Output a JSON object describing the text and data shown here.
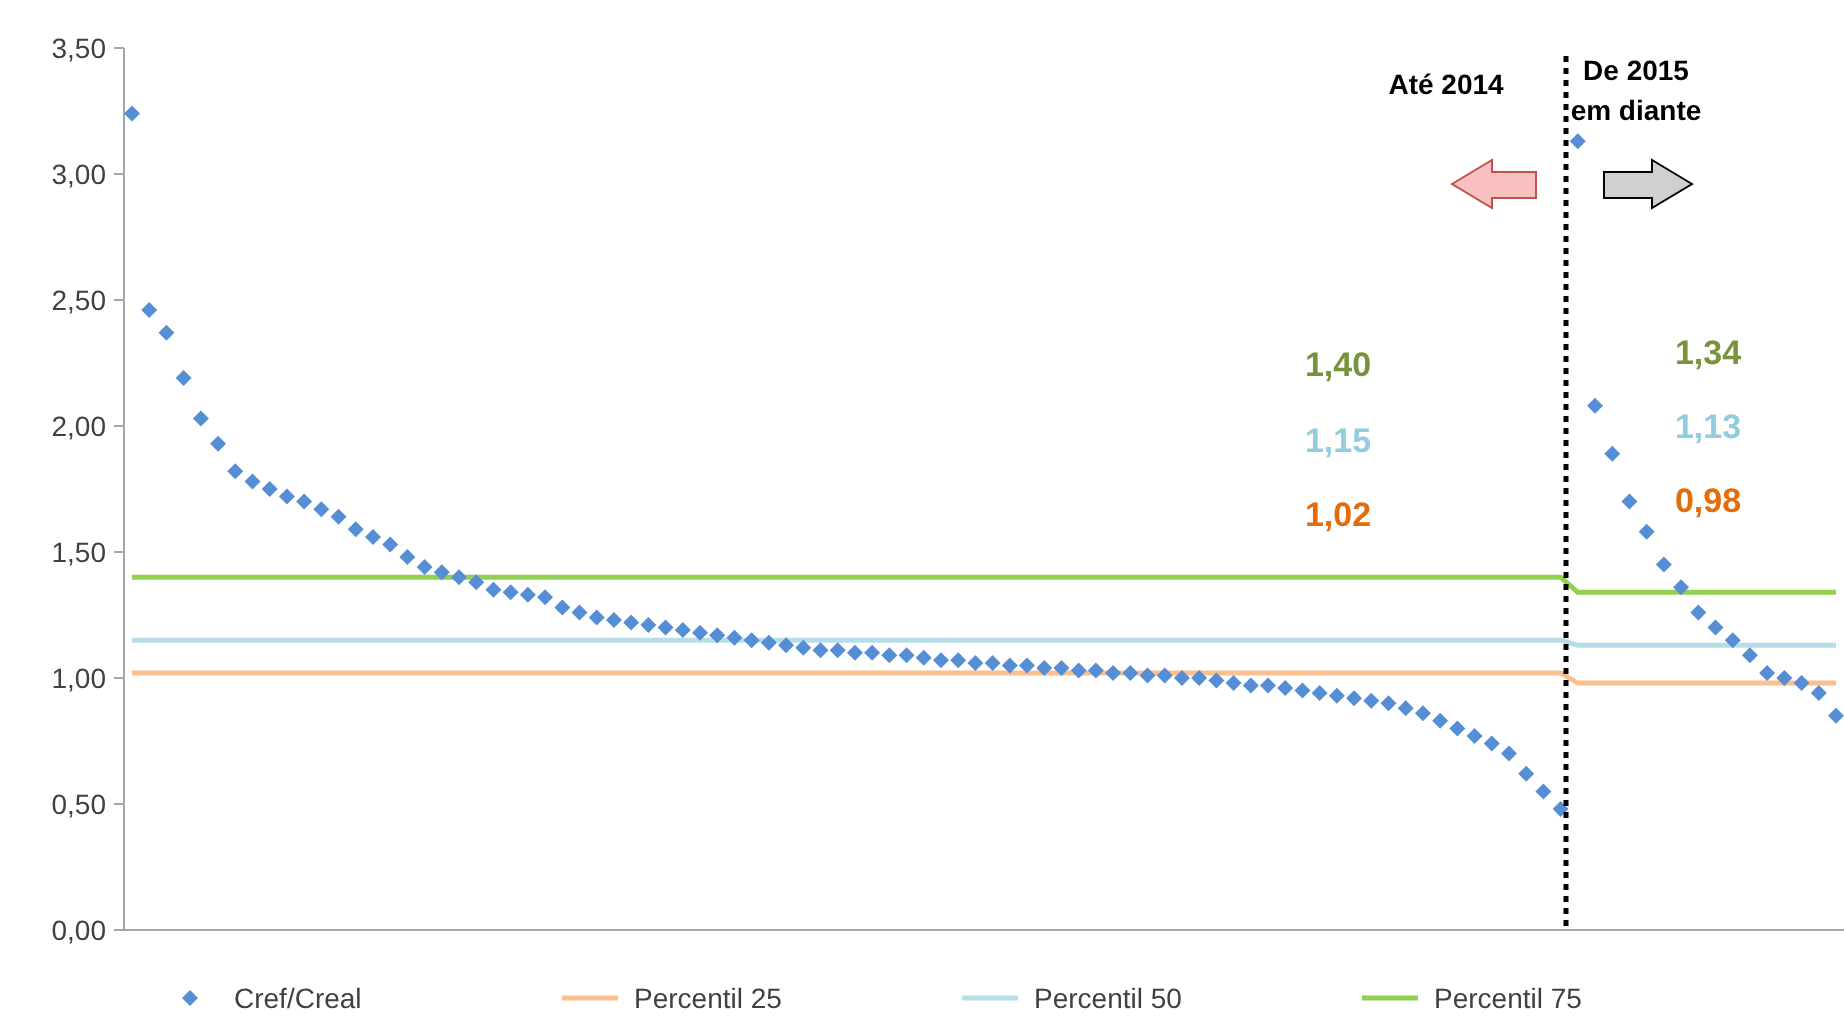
{
  "chart_data": {
    "type": "scatter",
    "categories": [
      null,
      null,
      null,
      null,
      null,
      null,
      null,
      null,
      null,
      null,
      null,
      null,
      null,
      null,
      null,
      null,
      null,
      null,
      null,
      null,
      null,
      null,
      null,
      null,
      null,
      null,
      null,
      null,
      null,
      null,
      null,
      null,
      null,
      null,
      null,
      null,
      null,
      null,
      null,
      null,
      null,
      null,
      null,
      null,
      null,
      null,
      null,
      null,
      null,
      null,
      null,
      null,
      null,
      null,
      null,
      null,
      null,
      null,
      null,
      null,
      null,
      null,
      null,
      null,
      null,
      null,
      null,
      null,
      null,
      null,
      null,
      null,
      null,
      null,
      null,
      null,
      null,
      null,
      null,
      null,
      null,
      null,
      null,
      null,
      null,
      null,
      null,
      null,
      null,
      null,
      null,
      null,
      null,
      null,
      null,
      null,
      null,
      null,
      null,
      null
    ],
    "ylim": [
      0,
      3.5
    ],
    "yticks": [
      {
        "value": 0,
        "label": "0,00"
      },
      {
        "value": 0.5,
        "label": "0,50"
      },
      {
        "value": 1,
        "label": "1,00"
      },
      {
        "value": 1.5,
        "label": "1,50"
      },
      {
        "value": 2,
        "label": "2,00"
      },
      {
        "value": 2.5,
        "label": "2,50"
      },
      {
        "value": 3,
        "label": "3,00"
      },
      {
        "value": 3.5,
        "label": "3,50"
      }
    ],
    "grid": false,
    "legend": "bottom",
    "series": [
      {
        "name": "Cref/Creal",
        "marker": "diamond",
        "color": "#558ed5",
        "values": [
          3.24,
          2.46,
          2.37,
          2.19,
          2.03,
          1.93,
          1.82,
          1.78,
          1.75,
          1.72,
          1.7,
          1.67,
          1.64,
          1.59,
          1.56,
          1.53,
          1.48,
          1.44,
          1.42,
          1.4,
          1.38,
          1.35,
          1.34,
          1.33,
          1.32,
          1.28,
          1.26,
          1.24,
          1.23,
          1.22,
          1.21,
          1.2,
          1.19,
          1.18,
          1.17,
          1.16,
          1.15,
          1.14,
          1.13,
          1.12,
          1.11,
          1.11,
          1.1,
          1.1,
          1.09,
          1.09,
          1.08,
          1.07,
          1.07,
          1.06,
          1.06,
          1.05,
          1.05,
          1.04,
          1.04,
          1.03,
          1.03,
          1.02,
          1.02,
          1.01,
          1.01,
          1.0,
          1.0,
          0.99,
          0.98,
          0.97,
          0.97,
          0.96,
          0.95,
          0.94,
          0.93,
          0.92,
          0.91,
          0.9,
          0.88,
          0.86,
          0.83,
          0.8,
          0.77,
          0.74,
          0.7,
          0.62,
          0.55,
          0.48,
          3.13,
          2.08,
          1.89,
          1.7,
          1.58,
          1.45,
          1.36,
          1.26,
          1.2,
          1.15,
          1.09,
          1.02,
          1.0,
          0.98,
          0.94,
          0.85
        ]
      },
      {
        "name": "Percentil 25",
        "type": "line",
        "color": "#fac090",
        "values": [
          1.02,
          1.02,
          1.02,
          1.02,
          1.02,
          1.02,
          1.02,
          1.02,
          1.02,
          1.02,
          1.02,
          1.02,
          1.02,
          1.02,
          1.02,
          1.02,
          1.02,
          1.02,
          1.02,
          1.02,
          1.02,
          1.02,
          1.02,
          1.02,
          1.02,
          1.02,
          1.02,
          1.02,
          1.02,
          1.02,
          1.02,
          1.02,
          1.02,
          1.02,
          1.02,
          1.02,
          1.02,
          1.02,
          1.02,
          1.02,
          1.02,
          1.02,
          1.02,
          1.02,
          1.02,
          1.02,
          1.02,
          1.02,
          1.02,
          1.02,
          1.02,
          1.02,
          1.02,
          1.02,
          1.02,
          1.02,
          1.02,
          1.02,
          1.02,
          1.02,
          1.02,
          1.02,
          1.02,
          1.02,
          1.02,
          1.02,
          1.02,
          1.02,
          1.02,
          1.02,
          1.02,
          1.02,
          1.02,
          1.02,
          1.02,
          1.02,
          1.02,
          1.02,
          1.02,
          1.02,
          1.02,
          1.02,
          1.02,
          1.02,
          0.98,
          0.98,
          0.98,
          0.98,
          0.98,
          0.98,
          0.98,
          0.98,
          0.98,
          0.98,
          0.98,
          0.98,
          0.98,
          0.98,
          0.98,
          0.98
        ]
      },
      {
        "name": "Percentil 50",
        "type": "line",
        "color": "#b7dee8",
        "values": [
          1.15,
          1.15,
          1.15,
          1.15,
          1.15,
          1.15,
          1.15,
          1.15,
          1.15,
          1.15,
          1.15,
          1.15,
          1.15,
          1.15,
          1.15,
          1.15,
          1.15,
          1.15,
          1.15,
          1.15,
          1.15,
          1.15,
          1.15,
          1.15,
          1.15,
          1.15,
          1.15,
          1.15,
          1.15,
          1.15,
          1.15,
          1.15,
          1.15,
          1.15,
          1.15,
          1.15,
          1.15,
          1.15,
          1.15,
          1.15,
          1.15,
          1.15,
          1.15,
          1.15,
          1.15,
          1.15,
          1.15,
          1.15,
          1.15,
          1.15,
          1.15,
          1.15,
          1.15,
          1.15,
          1.15,
          1.15,
          1.15,
          1.15,
          1.15,
          1.15,
          1.15,
          1.15,
          1.15,
          1.15,
          1.15,
          1.15,
          1.15,
          1.15,
          1.15,
          1.15,
          1.15,
          1.15,
          1.15,
          1.15,
          1.15,
          1.15,
          1.15,
          1.15,
          1.15,
          1.15,
          1.15,
          1.15,
          1.15,
          1.15,
          1.13,
          1.13,
          1.13,
          1.13,
          1.13,
          1.13,
          1.13,
          1.13,
          1.13,
          1.13,
          1.13,
          1.13,
          1.13,
          1.13,
          1.13,
          1.13
        ]
      },
      {
        "name": "Percentil 75",
        "type": "line",
        "color": "#92d050",
        "values": [
          1.4,
          1.4,
          1.4,
          1.4,
          1.4,
          1.4,
          1.4,
          1.4,
          1.4,
          1.4,
          1.4,
          1.4,
          1.4,
          1.4,
          1.4,
          1.4,
          1.4,
          1.4,
          1.4,
          1.4,
          1.4,
          1.4,
          1.4,
          1.4,
          1.4,
          1.4,
          1.4,
          1.4,
          1.4,
          1.4,
          1.4,
          1.4,
          1.4,
          1.4,
          1.4,
          1.4,
          1.4,
          1.4,
          1.4,
          1.4,
          1.4,
          1.4,
          1.4,
          1.4,
          1.4,
          1.4,
          1.4,
          1.4,
          1.4,
          1.4,
          1.4,
          1.4,
          1.4,
          1.4,
          1.4,
          1.4,
          1.4,
          1.4,
          1.4,
          1.4,
          1.4,
          1.4,
          1.4,
          1.4,
          1.4,
          1.4,
          1.4,
          1.4,
          1.4,
          1.4,
          1.4,
          1.4,
          1.4,
          1.4,
          1.4,
          1.4,
          1.4,
          1.4,
          1.4,
          1.4,
          1.4,
          1.4,
          1.4,
          1.4,
          1.34,
          1.34,
          1.34,
          1.34,
          1.34,
          1.34,
          1.34,
          1.34,
          1.34,
          1.34,
          1.34,
          1.34,
          1.34,
          1.34,
          1.34,
          1.34
        ]
      }
    ],
    "annotations": [
      "Até 2014",
      "De 2015 em diante",
      "1,40",
      "1,15",
      "1,02",
      "1,34",
      "1,13",
      "0,98"
    ]
  }
}
